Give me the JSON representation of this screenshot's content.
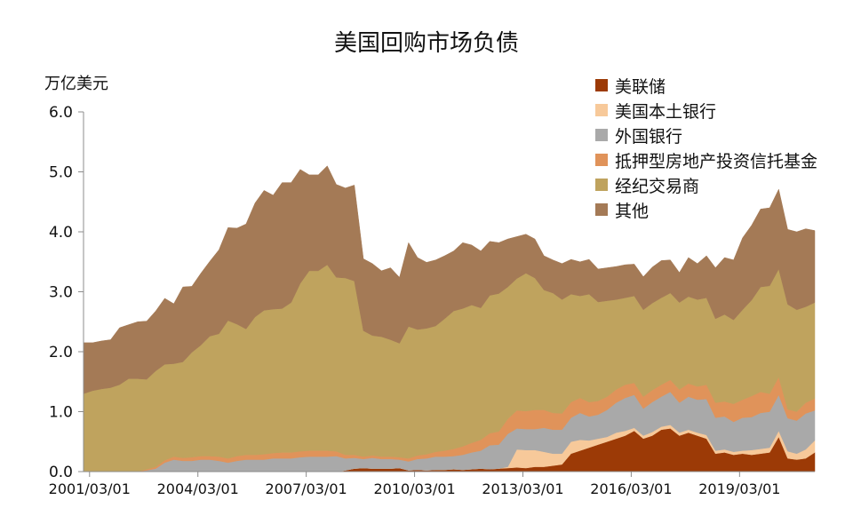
{
  "chart_data": {
    "type": "area",
    "stacked": true,
    "title": "美国回购市场负债",
    "ylabel": "万亿美元",
    "ylim": [
      0,
      6
    ],
    "yticks": [
      "0.0",
      "1.0",
      "2.0",
      "3.0",
      "4.0",
      "5.0",
      "6.0"
    ],
    "x_tick_labels": [
      "2001/03/01",
      "2004/03/01",
      "2007/03/01",
      "2010/03/01",
      "2013/03/01",
      "2016/03/01",
      "2019/03/01"
    ],
    "x_tick_years": [
      2001.167,
      2004.167,
      2007.167,
      2010.167,
      2013.167,
      2016.167,
      2019.167
    ],
    "legend_position": "top-right",
    "x": [
      2001.0,
      2001.25,
      2001.5,
      2001.75,
      2002.0,
      2002.25,
      2002.5,
      2002.75,
      2003.0,
      2003.25,
      2003.5,
      2003.75,
      2004.0,
      2004.25,
      2004.5,
      2004.75,
      2005.0,
      2005.25,
      2005.5,
      2005.75,
      2006.0,
      2006.25,
      2006.5,
      2006.75,
      2007.0,
      2007.25,
      2007.5,
      2007.75,
      2008.0,
      2008.25,
      2008.5,
      2008.75,
      2009.0,
      2009.25,
      2009.5,
      2009.75,
      2010.0,
      2010.25,
      2010.5,
      2010.75,
      2011.0,
      2011.25,
      2011.5,
      2011.75,
      2012.0,
      2012.25,
      2012.5,
      2012.75,
      2013.0,
      2013.25,
      2013.5,
      2013.75,
      2014.0,
      2014.25,
      2014.5,
      2014.75,
      2015.0,
      2015.25,
      2015.5,
      2015.75,
      2016.0,
      2016.25,
      2016.5,
      2016.75,
      2017.0,
      2017.25,
      2017.5,
      2017.75,
      2018.0,
      2018.25,
      2018.5,
      2018.75,
      2019.0,
      2019.25,
      2019.5,
      2019.75,
      2020.0,
      2020.25,
      2020.5,
      2020.75,
      2021.0,
      2021.25
    ],
    "series": [
      {
        "name": "美联储",
        "color": "#9c3a06",
        "values": [
          0,
          0,
          0,
          0,
          0,
          0,
          0,
          0,
          0,
          0,
          0,
          0,
          0,
          0,
          0,
          0,
          0,
          0,
          0,
          0,
          0,
          0,
          0,
          0,
          0,
          0,
          0,
          0,
          0,
          0.02,
          0.05,
          0.06,
          0.05,
          0.05,
          0.05,
          0.06,
          0.02,
          0.03,
          0.02,
          0.03,
          0.03,
          0.04,
          0.03,
          0.04,
          0.05,
          0.04,
          0.05,
          0.06,
          0.07,
          0.06,
          0.08,
          0.08,
          0.1,
          0.12,
          0.3,
          0.35,
          0.4,
          0.45,
          0.5,
          0.55,
          0.6,
          0.68,
          0.55,
          0.6,
          0.7,
          0.72,
          0.6,
          0.65,
          0.6,
          0.55,
          0.3,
          0.32,
          0.28,
          0.3,
          0.28,
          0.3,
          0.32,
          0.58,
          0.22,
          0.2,
          0.22,
          0.32
        ]
      },
      {
        "name": "美国本土银行",
        "color": "#f7c99a",
        "values": [
          0,
          0,
          0,
          0,
          0,
          0,
          0,
          0,
          0,
          0,
          0,
          0,
          0,
          0,
          0,
          0,
          0,
          0,
          0,
          0,
          0,
          0,
          0,
          0,
          0,
          0,
          0,
          0,
          0,
          0,
          0,
          0,
          0,
          0,
          0,
          0,
          0,
          0,
          0,
          0,
          0,
          0,
          0,
          0,
          0,
          0,
          0,
          0.02,
          0.3,
          0.3,
          0.28,
          0.25,
          0.2,
          0.18,
          0.2,
          0.18,
          0.12,
          0.1,
          0.08,
          0.1,
          0.08,
          0.05,
          0.05,
          0.06,
          0.05,
          0.06,
          0.05,
          0.05,
          0.05,
          0.06,
          0.05,
          0.05,
          0.05,
          0.05,
          0.08,
          0.08,
          0.08,
          0.1,
          0.12,
          0.1,
          0.15,
          0.2
        ]
      },
      {
        "name": "外国银行",
        "color": "#a9a9a9",
        "values": [
          0,
          0,
          0,
          0,
          0,
          0,
          0,
          0.02,
          0.05,
          0.15,
          0.2,
          0.18,
          0.18,
          0.2,
          0.2,
          0.18,
          0.15,
          0.18,
          0.2,
          0.2,
          0.2,
          0.22,
          0.22,
          0.22,
          0.24,
          0.25,
          0.25,
          0.25,
          0.26,
          0.2,
          0.18,
          0.15,
          0.18,
          0.16,
          0.16,
          0.14,
          0.15,
          0.18,
          0.2,
          0.22,
          0.22,
          0.22,
          0.25,
          0.28,
          0.3,
          0.4,
          0.4,
          0.55,
          0.35,
          0.35,
          0.35,
          0.4,
          0.4,
          0.4,
          0.4,
          0.45,
          0.4,
          0.4,
          0.45,
          0.5,
          0.55,
          0.55,
          0.45,
          0.5,
          0.5,
          0.55,
          0.5,
          0.55,
          0.55,
          0.6,
          0.55,
          0.55,
          0.5,
          0.55,
          0.55,
          0.6,
          0.6,
          0.6,
          0.55,
          0.55,
          0.6,
          0.5
        ]
      },
      {
        "name": "抵押型房地产投资信托基金",
        "color": "#e0935a",
        "values": [
          0,
          0,
          0,
          0,
          0,
          0,
          0,
          0.02,
          0.03,
          0.04,
          0.05,
          0.05,
          0.06,
          0.06,
          0.06,
          0.07,
          0.07,
          0.08,
          0.08,
          0.08,
          0.09,
          0.09,
          0.1,
          0.1,
          0.1,
          0.1,
          0.1,
          0.1,
          0.08,
          0.06,
          0.05,
          0.04,
          0.04,
          0.04,
          0.04,
          0.04,
          0.05,
          0.06,
          0.07,
          0.08,
          0.1,
          0.12,
          0.14,
          0.16,
          0.18,
          0.2,
          0.22,
          0.25,
          0.3,
          0.3,
          0.32,
          0.3,
          0.28,
          0.27,
          0.26,
          0.25,
          0.24,
          0.23,
          0.22,
          0.22,
          0.22,
          0.2,
          0.2,
          0.2,
          0.2,
          0.2,
          0.22,
          0.22,
          0.22,
          0.24,
          0.25,
          0.25,
          0.3,
          0.3,
          0.35,
          0.35,
          0.3,
          0.3,
          0.15,
          0.15,
          0.18,
          0.2
        ]
      },
      {
        "name": "经纪交易商",
        "color": "#bfa35e",
        "values": [
          1.3,
          1.35,
          1.38,
          1.4,
          1.45,
          1.55,
          1.55,
          1.5,
          1.6,
          1.6,
          1.55,
          1.6,
          1.75,
          1.85,
          2.0,
          2.05,
          2.3,
          2.2,
          2.1,
          2.3,
          2.4,
          2.4,
          2.4,
          2.5,
          2.8,
          3.0,
          3.0,
          3.1,
          2.9,
          2.95,
          2.9,
          2.1,
          2.0,
          2.0,
          1.95,
          1.9,
          2.2,
          2.1,
          2.1,
          2.1,
          2.2,
          2.3,
          2.3,
          2.3,
          2.2,
          2.3,
          2.3,
          2.2,
          2.2,
          2.3,
          2.2,
          2.0,
          2.0,
          1.9,
          1.8,
          1.7,
          1.8,
          1.65,
          1.6,
          1.5,
          1.45,
          1.45,
          1.45,
          1.45,
          1.45,
          1.45,
          1.45,
          1.45,
          1.45,
          1.45,
          1.4,
          1.45,
          1.4,
          1.5,
          1.6,
          1.75,
          1.8,
          1.8,
          1.75,
          1.7,
          1.6,
          1.6
        ]
      },
      {
        "name": "其他",
        "color": "#a47a56",
        "values": [
          0.85,
          0.8,
          0.8,
          0.8,
          0.95,
          0.9,
          0.95,
          0.97,
          1.0,
          1.1,
          1.0,
          1.25,
          1.1,
          1.2,
          1.25,
          1.4,
          1.55,
          1.6,
          1.75,
          1.9,
          2.0,
          1.9,
          2.1,
          2.0,
          1.9,
          1.6,
          1.6,
          1.65,
          1.55,
          1.5,
          1.6,
          1.2,
          1.2,
          1.1,
          1.2,
          1.1,
          1.4,
          1.2,
          1.1,
          1.1,
          1.05,
          1.0,
          1.1,
          1.0,
          0.95,
          0.9,
          0.85,
          0.8,
          0.7,
          0.65,
          0.65,
          0.57,
          0.55,
          0.6,
          0.58,
          0.57,
          0.58,
          0.55,
          0.55,
          0.55,
          0.55,
          0.53,
          0.55,
          0.6,
          0.62,
          0.55,
          0.5,
          0.65,
          0.6,
          0.7,
          0.85,
          0.95,
          1.0,
          1.2,
          1.25,
          1.3,
          1.3,
          1.33,
          1.25,
          1.3,
          1.3,
          1.2
        ]
      }
    ]
  }
}
